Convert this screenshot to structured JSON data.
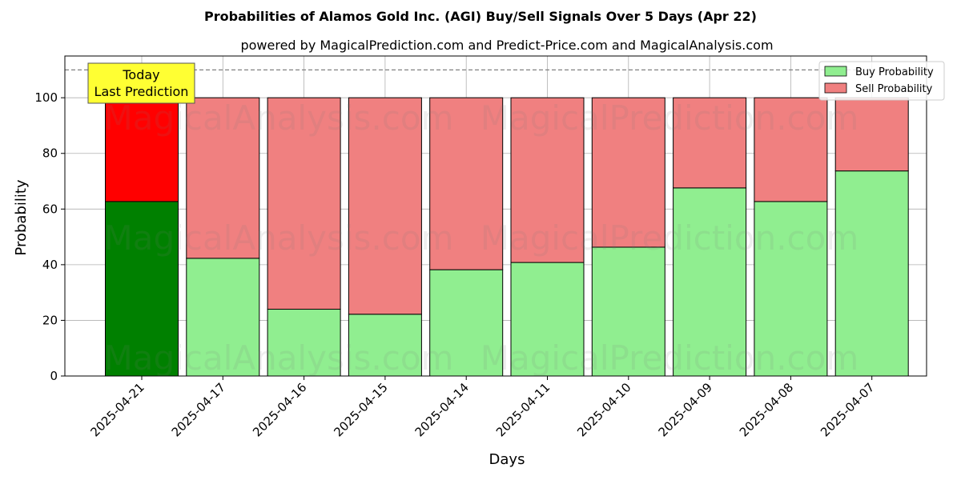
{
  "chart_data": {
    "type": "bar",
    "stacked": true,
    "title": "Probabilities of Alamos Gold Inc. (AGI) Buy/Sell Signals Over 5 Days (Apr 22)",
    "subtitle": "powered by MagicalPrediction.com and Predict-Price.com and MagicalAnalysis.com",
    "xlabel": "Days",
    "ylabel": "Probability",
    "ylim": [
      0,
      115
    ],
    "yticks": [
      0,
      20,
      40,
      60,
      80,
      100
    ],
    "grid": true,
    "legend_position": "top-right",
    "categories": [
      "2025-04-21",
      "2025-04-17",
      "2025-04-16",
      "2025-04-15",
      "2025-04-14",
      "2025-04-11",
      "2025-04-10",
      "2025-04-09",
      "2025-04-08",
      "2025-04-07"
    ],
    "series": [
      {
        "name": "Buy Probability",
        "values": [
          62.7,
          42.3,
          24.0,
          22.2,
          38.2,
          40.8,
          46.3,
          67.6,
          62.7,
          73.7
        ],
        "color": "#90ee90",
        "highlight_color": "#008000"
      },
      {
        "name": "Sell Probability",
        "values": [
          37.3,
          57.7,
          76.0,
          77.8,
          61.8,
          59.2,
          53.7,
          32.4,
          37.3,
          26.3
        ],
        "color": "#f08080",
        "highlight_color": "#ff0000"
      }
    ],
    "reference_line": {
      "y": 110,
      "style": "dashed"
    },
    "annotation": {
      "lines": [
        "Today",
        "Last Prediction"
      ],
      "color": "#ffff33"
    },
    "watermarks": [
      "MagicalAnalysis.com",
      "MagicalPrediction.com",
      "MagicalAnalysis.com",
      "MagicalPrediction.com",
      "MagicalAnalysis.com",
      "MagicalPrediction.com"
    ]
  }
}
